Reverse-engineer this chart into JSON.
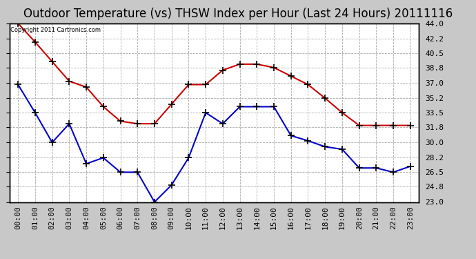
{
  "title": "Outdoor Temperature (vs) THSW Index per Hour (Last 24 Hours) 20111116",
  "copyright_text": "Copyright 2011 Cartronics.com",
  "hours": [
    "00:00",
    "01:00",
    "02:00",
    "03:00",
    "04:00",
    "05:00",
    "06:00",
    "07:00",
    "08:00",
    "09:00",
    "10:00",
    "11:00",
    "12:00",
    "13:00",
    "14:00",
    "15:00",
    "16:00",
    "17:00",
    "18:00",
    "19:00",
    "20:00",
    "21:00",
    "22:00",
    "23:00"
  ],
  "thsw_values": [
    44.0,
    41.8,
    39.5,
    37.2,
    36.5,
    34.2,
    32.5,
    32.2,
    32.2,
    34.5,
    36.8,
    36.8,
    38.5,
    39.2,
    39.2,
    38.8,
    37.8,
    36.8,
    35.2,
    33.5,
    32.0,
    32.0,
    32.0,
    32.0
  ],
  "temp_values": [
    36.8,
    33.5,
    30.0,
    32.2,
    27.5,
    28.2,
    26.5,
    26.5,
    23.0,
    25.0,
    28.2,
    33.5,
    32.2,
    34.2,
    34.2,
    34.2,
    30.8,
    30.2,
    29.5,
    29.2,
    27.0,
    27.0,
    26.5,
    27.2
  ],
  "thsw_color": "#cc0000",
  "temp_color": "#0000cc",
  "ylim": [
    23.0,
    44.0
  ],
  "yticks": [
    23.0,
    24.8,
    26.5,
    28.2,
    30.0,
    31.8,
    33.5,
    35.2,
    37.0,
    38.8,
    40.5,
    42.2,
    44.0
  ],
  "ytick_labels": [
    "23.0",
    "24.8",
    "26.5",
    "28.2",
    "30.0",
    "31.8",
    "33.5",
    "35.2",
    "37.0",
    "38.8",
    "40.5",
    "42.2",
    "44.0"
  ],
  "bg_color": "#c8c8c8",
  "plot_bg_color": "#ffffff",
  "grid_color": "#aaaaaa",
  "title_fontsize": 12,
  "tick_fontsize": 8,
  "marker": "+",
  "markersize": 7,
  "linewidth": 1.5,
  "markeredgewidth": 1.2
}
